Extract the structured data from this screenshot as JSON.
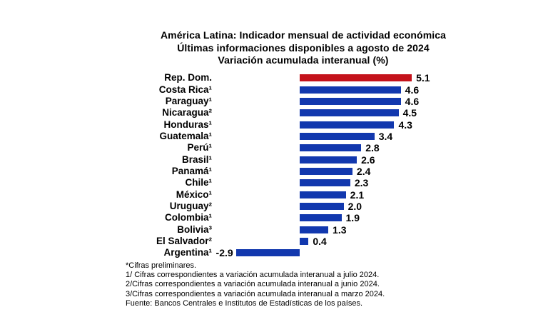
{
  "title": {
    "line1": "América Latina: Indicador mensual de actividad económica",
    "line2": "Últimas informaciones disponibles a agosto de 2024",
    "line3": "Variación acumulada interanual (%)"
  },
  "chart_data": {
    "type": "bar",
    "orientation": "horizontal",
    "title_lines": [
      "América Latina: Indicador mensual de actividad económica",
      "Últimas informaciones disponibles a agosto de 2024",
      "Variación acumulada interanual (%)"
    ],
    "xlabel": "",
    "ylabel": "",
    "xlim": [
      -3.5,
      6
    ],
    "grid": false,
    "legend": "none",
    "categories": [
      "Rep. Dom.",
      "Costa Rica¹",
      "Paraguay¹",
      "Nicaragua²",
      "Honduras¹",
      "Guatemala¹",
      "Perú¹",
      "Brasil¹",
      "Panamá¹",
      "Chile¹",
      "México¹",
      "Uruguay²",
      "Colombia¹",
      "Bolivia³",
      "El Salvador²",
      "Argentina¹"
    ],
    "values": [
      5.1,
      4.6,
      4.6,
      4.5,
      4.3,
      3.4,
      2.8,
      2.6,
      2.4,
      2.3,
      2.1,
      2.0,
      1.9,
      1.3,
      0.4,
      -2.9
    ],
    "value_labels": [
      "5.1",
      "4.6",
      "4.6",
      "4.5",
      "4.3",
      "3.4",
      "2.8",
      "2.6",
      "2.4",
      "2.3",
      "2.1",
      "2.0",
      "1.9",
      "1.3",
      "0.4",
      "-2.9"
    ],
    "highlight_category": "Rep. Dom.",
    "colors": {
      "highlight": "#C4121B",
      "default": "#1238AE",
      "text": "#000000",
      "background": "#FFFFFF"
    }
  },
  "footnotes": [
    "*Cifras preliminares.",
    "1/ Cifras correspondientes a variación acumulada interanual a julio 2024.",
    "2/Cifras correspondientes a variación acumulada interanual a junio 2024.",
    "3/Cifras correspondientes a variación acumulada interanual a marzo 2024.",
    "Fuente: Bancos Centrales e Institutos de Estadísticas de los países."
  ]
}
